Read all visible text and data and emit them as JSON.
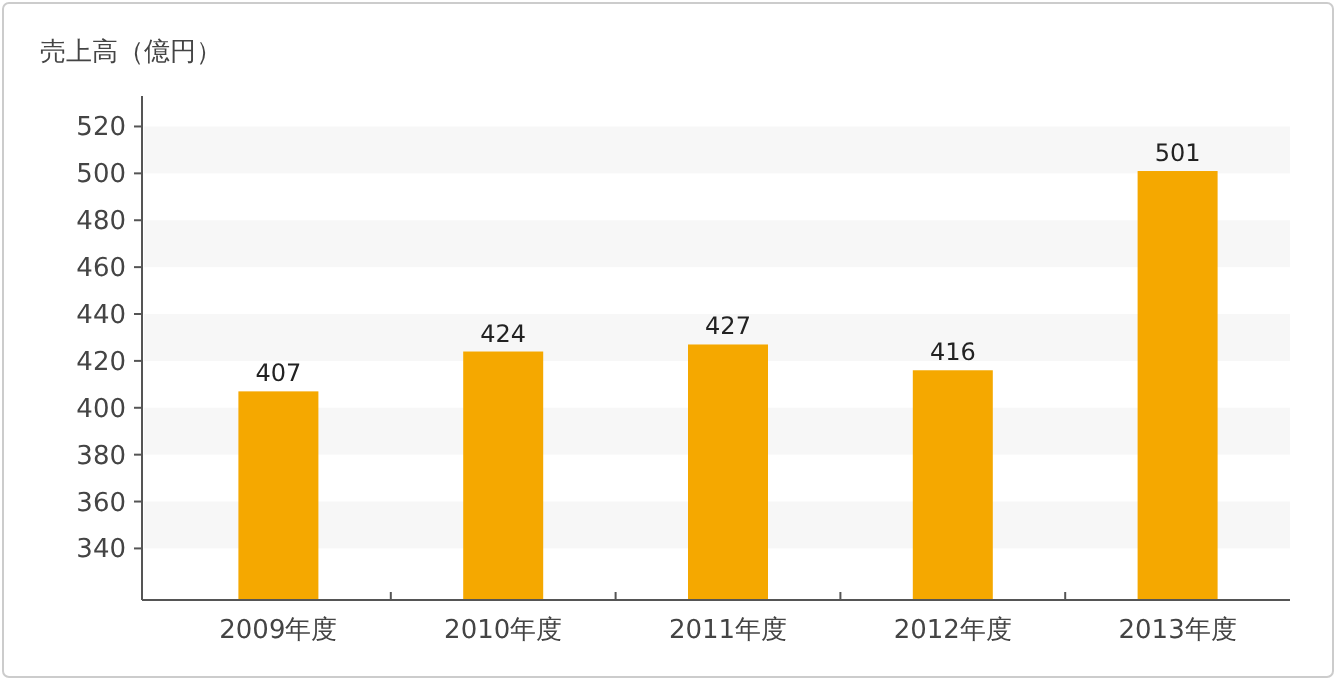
{
  "chart_data": {
    "type": "bar",
    "ylabel": "売上高（億円）",
    "categories": [
      "2009年度",
      "2010年度",
      "2011年度",
      "2012年度",
      "2013年度"
    ],
    "series": [
      {
        "color": "#f5a800",
        "values": [
          407,
          424,
          427,
          416,
          501
        ]
      }
    ],
    "ylim": [
      318,
      533
    ],
    "yticks": [
      340,
      360,
      380,
      400,
      420,
      440,
      460,
      480,
      500,
      520
    ],
    "bands": [
      {
        "axis": "y",
        "from": 340,
        "to": 360,
        "color": "#f7f7f7"
      },
      {
        "axis": "y",
        "from": 380,
        "to": 400,
        "color": "#f7f7f7"
      },
      {
        "axis": "y",
        "from": 420,
        "to": 440,
        "color": "#f7f7f7"
      },
      {
        "axis": "y",
        "from": 460,
        "to": 480,
        "color": "#f7f7f7"
      },
      {
        "axis": "y",
        "from": 500,
        "to": 520,
        "color": "#f7f7f7"
      }
    ],
    "data_labels": true,
    "grid": false
  }
}
